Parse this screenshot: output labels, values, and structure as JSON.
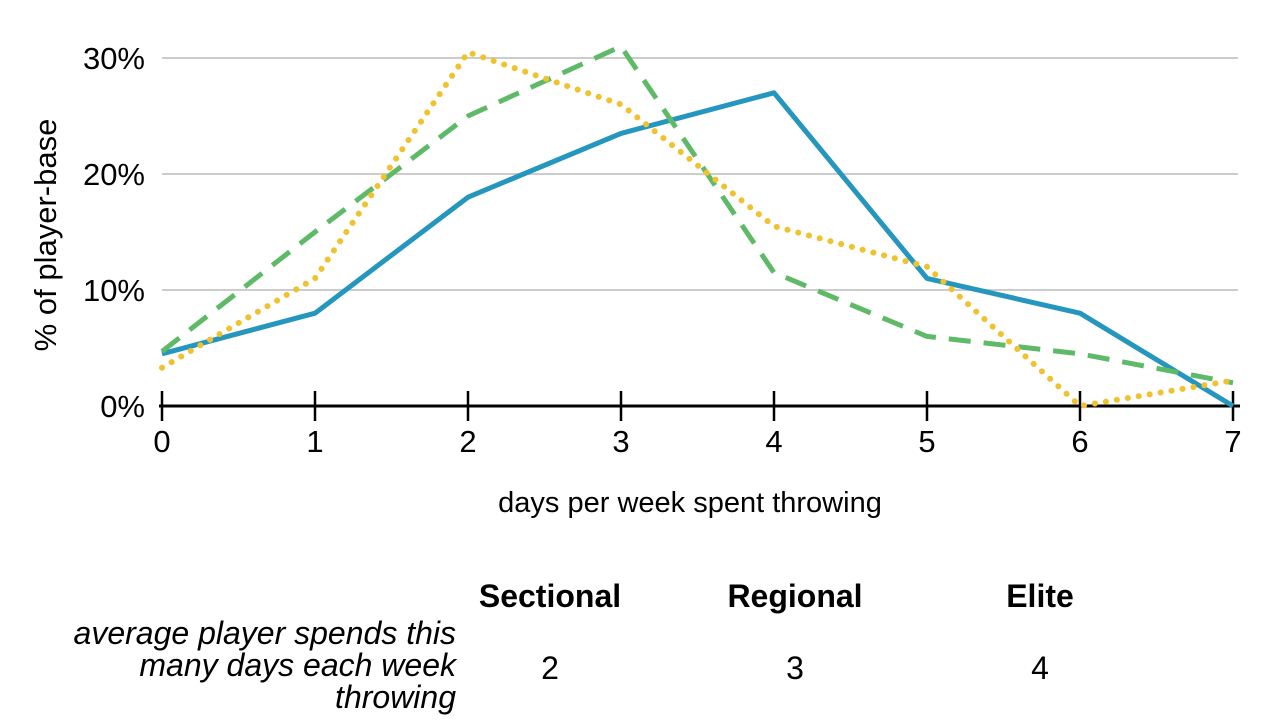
{
  "chart_data": {
    "type": "line",
    "title": "",
    "xlabel": "days per week spent throwing",
    "ylabel": "% of player-base",
    "x": [
      0,
      1,
      2,
      3,
      4,
      5,
      6,
      7
    ],
    "x_tick_labels": [
      "0",
      "1",
      "2",
      "3",
      "4",
      "5",
      "6",
      "7"
    ],
    "y_ticks": [
      0,
      10,
      20,
      30
    ],
    "y_tick_labels": [
      "0%",
      "10%",
      "20%",
      "30%"
    ],
    "ylim": [
      0,
      32
    ],
    "xlim": [
      0,
      7
    ],
    "grid": "horizontal gridlines at 10%, 20%, 30%",
    "legend_position": "none (series identified by table below chart)",
    "grid_color": "#cccccc",
    "axis_color": "#000000",
    "series": [
      {
        "name": "Sectional",
        "style": "dotted",
        "color": "#f0c22f",
        "values": [
          3.3,
          11,
          30.5,
          26,
          15.5,
          12,
          0,
          2.2
        ]
      },
      {
        "name": "Regional",
        "style": "dashed",
        "color": "#5fba68",
        "values": [
          4.7,
          15,
          25,
          31,
          11.5,
          6,
          4.5,
          2
        ]
      },
      {
        "name": "Elite",
        "style": "solid",
        "color": "#2596be",
        "values": [
          4.5,
          8,
          18,
          23.5,
          27,
          11,
          8,
          0
        ]
      }
    ]
  },
  "table": {
    "columns": [
      "Sectional",
      "Regional",
      "Elite"
    ],
    "row_label": "average player spends this many days each week throwing",
    "row_label_lines": [
      "average player spends this",
      "many days each week",
      "throwing"
    ],
    "values": [
      "2",
      "3",
      "4"
    ]
  }
}
